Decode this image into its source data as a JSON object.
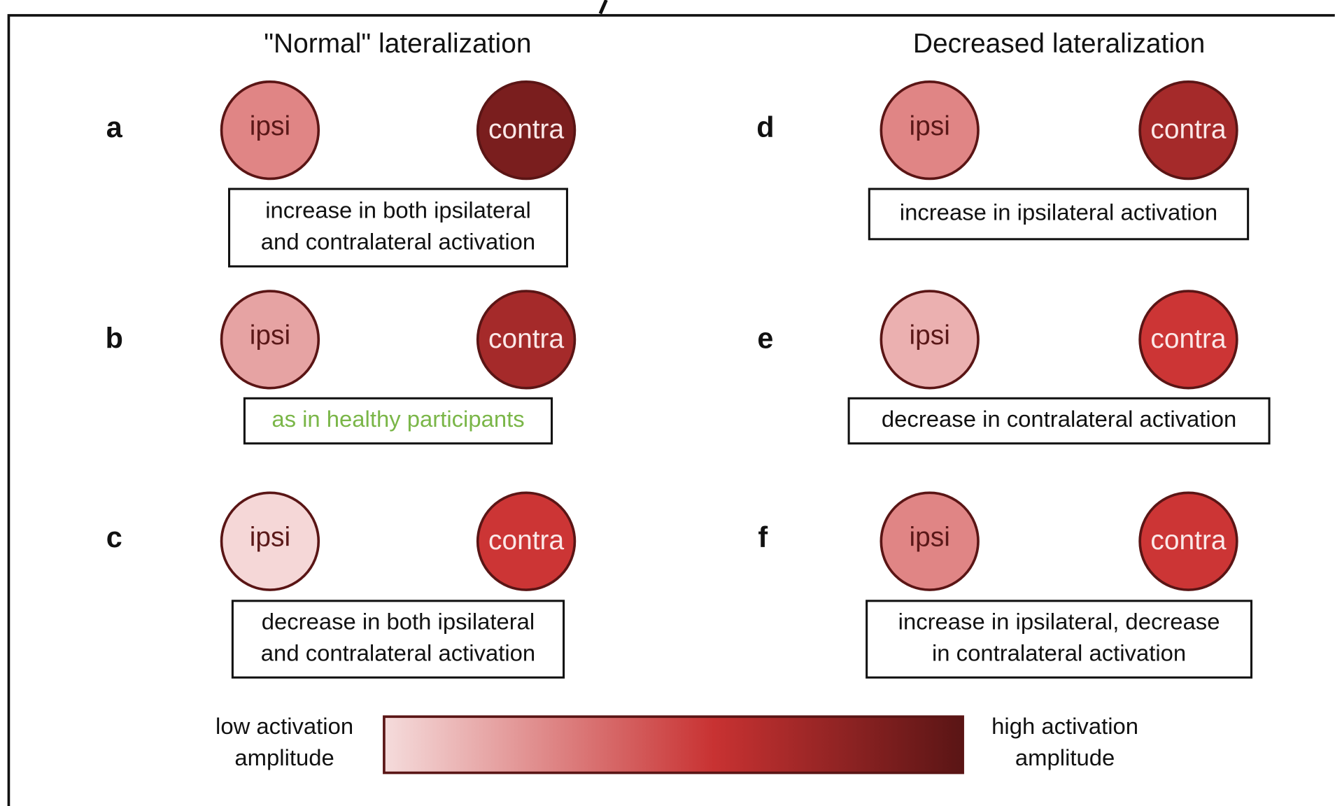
{
  "headings": [
    "\"Normal\" lateralization",
    "Decreased lateralization"
  ],
  "panels": [
    {
      "letter": "a",
      "ipsi": "ipsi",
      "contra": "contra",
      "ipsi_color": "#e08585",
      "contra_color": "#7a1e1e",
      "box": [
        "increase in both ipsilateral",
        "and contralateral activation"
      ]
    },
    {
      "letter": "b",
      "ipsi": "ipsi",
      "contra": "contra",
      "ipsi_color": "#e6a3a3",
      "contra_color": "#a52a2a",
      "box": [
        "as in healthy participants"
      ],
      "box_color": "#7ab648"
    },
    {
      "letter": "c",
      "ipsi": "ipsi",
      "contra": "contra",
      "ipsi_color": "#f5d7d7",
      "contra_color": "#cc3535",
      "box": [
        "decrease in both ipsilateral",
        "and contralateral activation"
      ]
    },
    {
      "letter": "d",
      "ipsi": "ipsi",
      "contra": "contra",
      "ipsi_color": "#e08585",
      "contra_color": "#a52a2a",
      "box": [
        "increase in ipsilateral activation"
      ]
    },
    {
      "letter": "e",
      "ipsi": "ipsi",
      "contra": "contra",
      "ipsi_color": "#ebb0b0",
      "contra_color": "#cc3535",
      "box": [
        "decrease in contralateral activation"
      ]
    },
    {
      "letter": "f",
      "ipsi": "ipsi",
      "contra": "contra",
      "ipsi_color": "#e08585",
      "contra_color": "#cc3535",
      "box": [
        "increase in ipsilateral, decrease",
        "in contralateral activation"
      ]
    }
  ],
  "legend": {
    "low": [
      "low activation",
      "amplitude"
    ],
    "high": [
      "high activation",
      "amplitude"
    ],
    "colors": [
      "#f5dcdc",
      "#c83232",
      "#5a1515"
    ]
  }
}
